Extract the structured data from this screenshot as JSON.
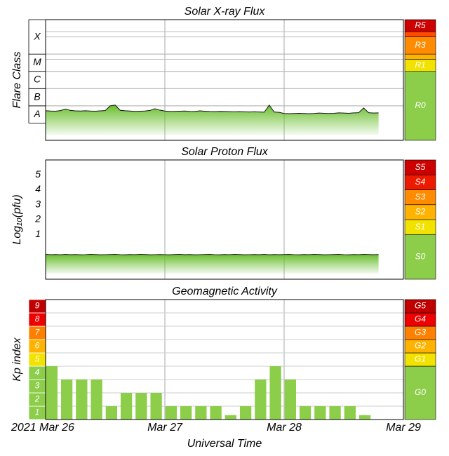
{
  "x_axis": {
    "label": "Universal Time",
    "xlim": [
      0,
      72
    ],
    "xticks": [
      {
        "value": 0,
        "label": "2021 Mar 26"
      },
      {
        "value": 24,
        "label": "Mar 27"
      },
      {
        "value": 48,
        "label": "Mar 28"
      },
      {
        "value": 72,
        "label": "Mar 29"
      }
    ]
  },
  "chart_data": [
    {
      "type": "line",
      "title": "Solar X-ray Flux",
      "ylabel": "Flare Class",
      "log_scale": true,
      "color": "#6abf2e",
      "ylim": [
        1e-09,
        0.01
      ],
      "classes": [
        {
          "label": "A",
          "from": 1e-08,
          "to": 1e-07
        },
        {
          "label": "B",
          "from": 1e-07,
          "to": 1e-06
        },
        {
          "label": "C",
          "from": 1e-06,
          "to": 1e-05
        },
        {
          "label": "M",
          "from": 1e-05,
          "to": 0.0001
        },
        {
          "label": "X",
          "from": 0.0001,
          "to": 0.01
        }
      ],
      "scale_bands": [
        {
          "label": "R0",
          "from": 1e-09,
          "to": 1e-05,
          "color": "#8ccd4a"
        },
        {
          "label": "R1",
          "from": 1e-05,
          "to": 5e-05,
          "color": "#f2e200"
        },
        {
          "from": 5e-05,
          "to": 0.0001,
          "color": "#ffb300"
        },
        {
          "label": "R3",
          "from": 0.0001,
          "to": 0.001,
          "color": "#ff8c00"
        },
        {
          "from": 0.001,
          "to": 0.002,
          "color": "#ff4a00"
        },
        {
          "label": "R5",
          "from": 0.002,
          "to": 0.01,
          "color": "#cc0000"
        }
      ],
      "x": [
        0,
        1,
        2,
        3,
        4,
        5,
        6,
        7,
        8,
        9,
        10,
        11,
        12,
        13,
        14,
        15,
        16,
        17,
        18,
        19,
        20,
        21,
        22,
        23,
        24,
        25,
        26,
        27,
        28,
        29,
        30,
        31,
        32,
        33,
        34,
        35,
        36,
        37,
        38,
        39,
        40,
        41,
        42,
        43,
        44,
        45,
        46,
        47,
        48,
        49,
        50,
        51,
        52,
        53,
        54,
        55,
        56,
        57,
        58,
        59,
        60,
        61,
        62,
        63,
        64,
        65,
        66,
        67
      ],
      "values": [
        5.2e-08,
        5e-08,
        4.9e-08,
        5.3e-08,
        6.5e-08,
        5.4e-08,
        5.1e-08,
        5e-08,
        5.2e-08,
        5e-08,
        4.9e-08,
        5.1e-08,
        5.3e-08,
        1e-07,
        1.1e-07,
        5.5e-08,
        5.2e-08,
        5e-08,
        4.8e-08,
        4.9e-08,
        5e-08,
        5.4e-08,
        6.8e-08,
        5.6e-08,
        5e-08,
        4.7e-08,
        4.8e-08,
        4.9e-08,
        5e-08,
        4.8e-08,
        4.7e-08,
        5.1e-08,
        4.9e-08,
        4.7e-08,
        4.6e-08,
        4.8e-08,
        4.7e-08,
        4.6e-08,
        4.5e-08,
        4.6e-08,
        4.5e-08,
        4.4e-08,
        4.5e-08,
        4.4e-08,
        4.3e-08,
        1.1e-07,
        4.4e-08,
        4.2e-08,
        3.6e-08,
        3.5e-08,
        3.6e-08,
        3.7e-08,
        3.6e-08,
        3.5e-08,
        3.6e-08,
        3.8e-08,
        3.7e-08,
        3.6e-08,
        3.7e-08,
        3.9e-08,
        3.8e-08,
        3.7e-08,
        3.9e-08,
        4e-08,
        7.5e-08,
        4e-08,
        3.8e-08,
        3.9e-08
      ]
    },
    {
      "type": "line",
      "title": "Solar Proton Flux",
      "ylabel": "Log₁₀(pfu)",
      "color": "#6abf2e",
      "ylim": [
        -2,
        6
      ],
      "yticks": [
        1,
        2,
        3,
        4,
        5
      ],
      "scale_bands": [
        {
          "label": "S0",
          "from": -2,
          "to": 1,
          "color": "#8ccd4a"
        },
        {
          "label": "S1",
          "from": 1,
          "to": 2,
          "color": "#f2e200"
        },
        {
          "label": "S2",
          "from": 2,
          "to": 3,
          "color": "#ffb300"
        },
        {
          "label": "S3",
          "from": 3,
          "to": 4,
          "color": "#ff8c00"
        },
        {
          "label": "S4",
          "from": 4,
          "to": 5,
          "color": "#ee1a00"
        },
        {
          "label": "S5",
          "from": 5,
          "to": 6,
          "color": "#cc0000"
        }
      ],
      "x": [
        0,
        1,
        2,
        3,
        4,
        5,
        6,
        7,
        8,
        9,
        10,
        11,
        12,
        13,
        14,
        15,
        16,
        17,
        18,
        19,
        20,
        21,
        22,
        23,
        24,
        25,
        26,
        27,
        28,
        29,
        30,
        31,
        32,
        33,
        34,
        35,
        36,
        37,
        38,
        39,
        40,
        41,
        42,
        43,
        44,
        45,
        46,
        47,
        48,
        49,
        50,
        51,
        52,
        53,
        54,
        55,
        56,
        57,
        58,
        59,
        60,
        61,
        62,
        63,
        64,
        65,
        66,
        67
      ],
      "values": [
        -0.33,
        -0.35,
        -0.34,
        -0.36,
        -0.33,
        -0.35,
        -0.34,
        -0.36,
        -0.35,
        -0.33,
        -0.34,
        -0.36,
        -0.35,
        -0.34,
        -0.33,
        -0.35,
        -0.36,
        -0.34,
        -0.35,
        -0.33,
        -0.34,
        -0.36,
        -0.35,
        -0.34,
        -0.35,
        -0.36,
        -0.34,
        -0.33,
        -0.35,
        -0.34,
        -0.36,
        -0.35,
        -0.34,
        -0.33,
        -0.35,
        -0.36,
        -0.34,
        -0.35,
        -0.33,
        -0.34,
        -0.36,
        -0.35,
        -0.34,
        -0.35,
        -0.33,
        -0.36,
        -0.34,
        -0.35,
        -0.34,
        -0.33,
        -0.35,
        -0.36,
        -0.34,
        -0.35,
        -0.33,
        -0.34,
        -0.36,
        -0.35,
        -0.34,
        -0.33,
        -0.35,
        -0.36,
        -0.34,
        -0.35,
        -0.33,
        -0.34,
        -0.35,
        -0.34
      ]
    },
    {
      "type": "bar",
      "title": "Geomagnetic Activity",
      "ylabel": "Kp index",
      "color": "#8ccd4a",
      "grid": true,
      "ylim": [
        0,
        9
      ],
      "yticks": [
        1,
        2,
        3,
        4,
        5,
        6,
        7,
        8,
        9
      ],
      "scale_bands": [
        {
          "label": "G0",
          "from": 0,
          "to": 4,
          "color": "#8ccd4a"
        },
        {
          "label": "G1",
          "from": 4,
          "to": 5,
          "color": "#f2e200"
        },
        {
          "label": "G2",
          "from": 5,
          "to": 6,
          "color": "#ffb300"
        },
        {
          "label": "G3",
          "from": 6,
          "to": 7,
          "color": "#ff8000"
        },
        {
          "label": "G4",
          "from": 7,
          "to": 8,
          "color": "#ee0000"
        },
        {
          "label": "G5",
          "from": 8,
          "to": 9,
          "color": "#c00000"
        }
      ],
      "x": [
        0,
        3,
        6,
        9,
        12,
        15,
        18,
        21,
        24,
        27,
        30,
        33,
        36,
        39,
        42,
        45,
        48,
        51,
        54,
        57,
        60,
        63
      ],
      "values": [
        4,
        3,
        3,
        3,
        1,
        2,
        2,
        2,
        1,
        1,
        1,
        1,
        0.33,
        1,
        3,
        4,
        3,
        1,
        1,
        1,
        1,
        0.33
      ]
    }
  ]
}
